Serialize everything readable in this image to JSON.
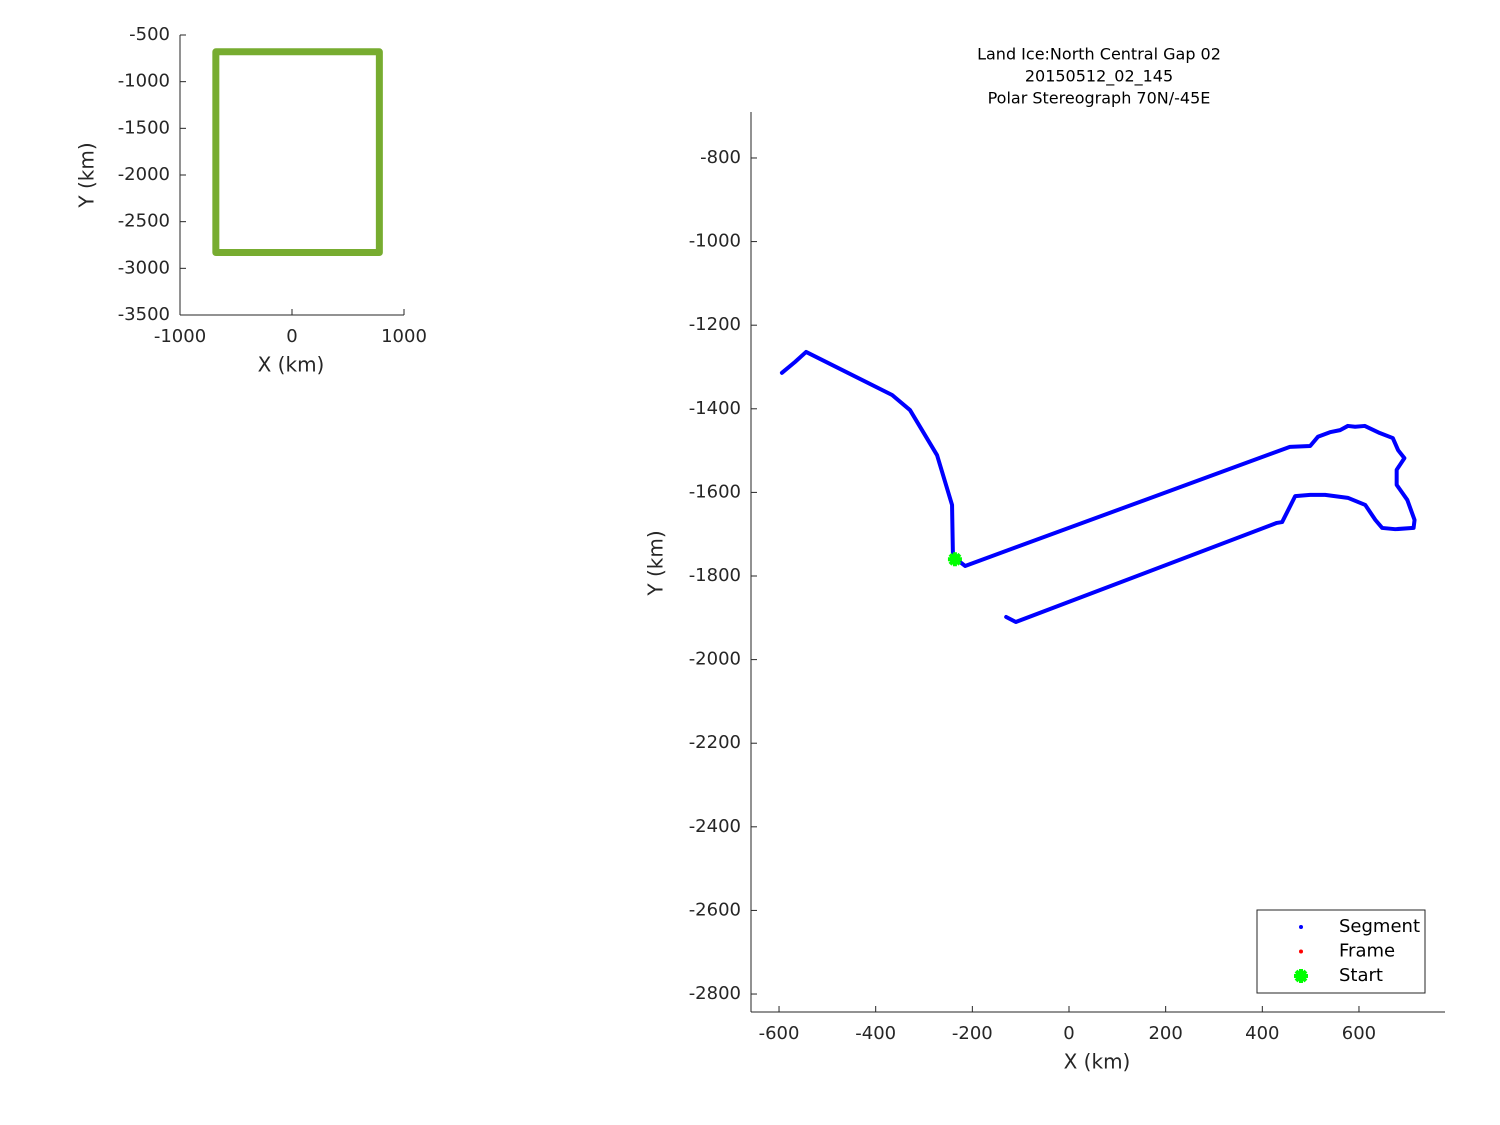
{
  "chart_data": [
    {
      "type": "line",
      "x_label": "X (km)",
      "y_label": "Y (km)",
      "xlim": [
        -1000,
        1000
      ],
      "ylim": [
        -3500,
        -500
      ],
      "xticks": [
        -1000,
        0,
        1000
      ],
      "yticks": [
        -500,
        -1000,
        -1500,
        -2000,
        -2500,
        -3000,
        -3500
      ],
      "series": [
        {
          "color": "#77ac30",
          "x": [
            -680,
            780,
            780,
            -680,
            -680
          ],
          "values": [
            -680,
            -680,
            -2830,
            -2830,
            -680
          ]
        }
      ]
    },
    {
      "type": "line",
      "title": [
        "Land Ice:North Central Gap 02",
        "20150512_02_145",
        "Polar Stereograph 70N/-45E"
      ],
      "x_label": "X (km)",
      "y_label": "Y (km)",
      "xlim": [
        -658,
        778
      ],
      "ylim": [
        -2843,
        -690
      ],
      "xticks": [
        -600,
        -400,
        -200,
        0,
        200,
        400,
        600
      ],
      "yticks": [
        -800,
        -1000,
        -1200,
        -1400,
        -1600,
        -1800,
        -2000,
        -2200,
        -2400,
        -2600,
        -2800
      ],
      "legend": "lower right",
      "series": [
        {
          "name": "Segment",
          "color": "#0000ff",
          "marker": "dot",
          "x": [
            -594,
            -567,
            -544,
            -366,
            -329,
            -273,
            -242,
            -240,
            -236,
            -215,
            457,
            499,
            515,
            540,
            561,
            577,
            592,
            612,
            643,
            670,
            681,
            694,
            678,
            678,
            700,
            715,
            713,
            675,
            648,
            634,
            613,
            577,
            530,
            499,
            468,
            441,
            430,
            -110,
            -130
          ],
          "values": [
            -1314,
            -1288,
            -1264,
            -1367,
            -1403,
            -1511,
            -1630,
            -1762,
            -1757,
            -1776,
            -1491,
            -1489,
            -1467,
            -1456,
            -1451,
            -1441,
            -1443,
            -1441,
            -1458,
            -1470,
            -1499,
            -1518,
            -1546,
            -1582,
            -1618,
            -1666,
            -1685,
            -1688,
            -1685,
            -1666,
            -1630,
            -1613,
            -1606,
            -1606,
            -1609,
            -1671,
            -1673,
            -1910,
            -1898
          ]
        },
        {
          "name": "Frame",
          "color": "#ff0000",
          "marker": "dot",
          "x": [],
          "values": []
        },
        {
          "name": "Start",
          "color": "#00ff00",
          "marker": "star",
          "x": [
            -236
          ],
          "values": [
            -1760
          ]
        }
      ]
    }
  ]
}
